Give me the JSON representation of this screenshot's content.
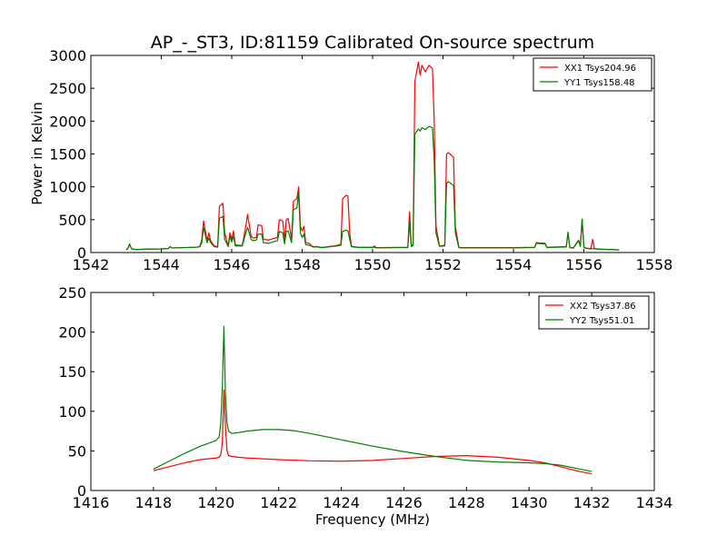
{
  "chart_data": [
    {
      "type": "line",
      "title": "AP_-_ST3, ID:81159 Calibrated On-source spectrum",
      "xlabel": "",
      "ylabel": "Power in Kelvin",
      "xlim": [
        1542,
        1558
      ],
      "ylim": [
        0,
        3000
      ],
      "xticks": [
        1542,
        1544,
        1546,
        1548,
        1550,
        1552,
        1554,
        1556,
        1558
      ],
      "yticks": [
        0,
        500,
        1000,
        1500,
        2000,
        2500,
        3000
      ],
      "grid": false,
      "legend_position": "top-right",
      "series": [
        {
          "name": "XX1 Tsys204.96",
          "color": "#ff0000",
          "x": [
            1543.0,
            1543.05,
            1543.1,
            1543.15,
            1543.2,
            1543.3,
            1543.5,
            1544.0,
            1544.2,
            1544.25,
            1544.3,
            1545.0,
            1545.05,
            1545.1,
            1545.15,
            1545.2,
            1545.3,
            1545.35,
            1545.4,
            1545.5,
            1545.6,
            1545.65,
            1545.75,
            1545.8,
            1545.9,
            1545.95,
            1546.0,
            1546.05,
            1546.1,
            1546.2,
            1546.3,
            1546.4,
            1546.45,
            1546.55,
            1546.6,
            1546.7,
            1546.75,
            1546.85,
            1546.9,
            1547.05,
            1547.1,
            1547.3,
            1547.35,
            1547.45,
            1547.5,
            1547.55,
            1547.6,
            1547.7,
            1547.75,
            1547.85,
            1547.9,
            1547.95,
            1548.0,
            1548.05,
            1548.1,
            1548.2,
            1548.25,
            1548.3,
            1548.45,
            1548.5,
            1548.6,
            1548.9,
            1549.0,
            1549.1,
            1549.15,
            1549.25,
            1549.3,
            1549.35,
            1549.4,
            1549.45,
            1549.6,
            1550.0,
            1550.05,
            1550.1,
            1551.0,
            1551.05,
            1551.1,
            1551.15,
            1551.2,
            1551.3,
            1551.35,
            1551.4,
            1551.5,
            1551.6,
            1551.7,
            1551.75,
            1551.8,
            1551.9,
            1552.05,
            1552.1,
            1552.15,
            1552.2,
            1552.3,
            1552.35,
            1552.45,
            1552.5,
            1553.0,
            1554.0,
            1554.6,
            1554.65,
            1554.9,
            1554.95,
            1555.5,
            1555.55,
            1555.6,
            1555.7,
            1555.85,
            1555.9,
            1555.95,
            1556.0,
            1556.05,
            1556.2,
            1556.25,
            1556.3,
            1556.5,
            1557.0
          ],
          "y": [
            40,
            60,
            130,
            60,
            50,
            45,
            50,
            55,
            60,
            90,
            70,
            80,
            85,
            100,
            200,
            480,
            180,
            300,
            180,
            100,
            90,
            700,
            750,
            300,
            100,
            300,
            200,
            330,
            120,
            110,
            110,
            400,
            580,
            250,
            220,
            230,
            420,
            410,
            200,
            190,
            200,
            230,
            500,
            480,
            180,
            500,
            520,
            200,
            780,
            820,
            1000,
            400,
            330,
            400,
            150,
            140,
            110,
            90,
            90,
            80,
            80,
            100,
            110,
            130,
            820,
            870,
            860,
            300,
            100,
            90,
            80,
            80,
            100,
            75,
            80,
            620,
            100,
            120,
            2600,
            2900,
            2700,
            2850,
            2750,
            2850,
            2800,
            2000,
            400,
            100,
            110,
            1500,
            1520,
            1500,
            1450,
            400,
            80,
            75,
            75,
            75,
            80,
            150,
            140,
            80,
            90,
            300,
            80,
            70,
            190,
            100,
            500,
            90,
            70,
            60,
            200,
            60,
            50,
            40
          ]
        },
        {
          "name": "YY1 Tsys158.48",
          "color": "#008000",
          "x": [
            1543.0,
            1543.05,
            1543.1,
            1543.15,
            1543.2,
            1543.3,
            1543.5,
            1544.0,
            1544.2,
            1544.25,
            1544.3,
            1545.0,
            1545.05,
            1545.1,
            1545.15,
            1545.2,
            1545.3,
            1545.35,
            1545.4,
            1545.5,
            1545.6,
            1545.65,
            1545.75,
            1545.8,
            1545.9,
            1545.95,
            1546.0,
            1546.05,
            1546.1,
            1546.2,
            1546.3,
            1546.4,
            1546.45,
            1546.55,
            1546.6,
            1546.7,
            1546.75,
            1546.85,
            1546.9,
            1547.05,
            1547.1,
            1547.3,
            1547.35,
            1547.45,
            1547.5,
            1547.55,
            1547.6,
            1547.7,
            1547.75,
            1547.85,
            1547.9,
            1547.95,
            1548.0,
            1548.05,
            1548.1,
            1548.2,
            1548.25,
            1548.3,
            1548.45,
            1548.5,
            1548.6,
            1548.9,
            1549.0,
            1549.1,
            1549.15,
            1549.25,
            1549.3,
            1549.35,
            1549.4,
            1549.45,
            1549.6,
            1550.0,
            1550.05,
            1550.1,
            1551.0,
            1551.05,
            1551.1,
            1551.15,
            1551.2,
            1551.3,
            1551.35,
            1551.4,
            1551.5,
            1551.6,
            1551.7,
            1551.75,
            1551.8,
            1551.9,
            1552.05,
            1552.1,
            1552.15,
            1552.2,
            1552.3,
            1552.35,
            1552.45,
            1552.5,
            1553.0,
            1554.0,
            1554.6,
            1554.65,
            1554.9,
            1554.95,
            1555.5,
            1555.55,
            1555.6,
            1555.7,
            1555.85,
            1555.9,
            1555.95,
            1556.0,
            1556.05,
            1556.2,
            1556.25,
            1556.3,
            1556.5,
            1557.0
          ],
          "y": [
            40,
            60,
            130,
            60,
            50,
            45,
            50,
            55,
            60,
            90,
            70,
            80,
            85,
            90,
            150,
            380,
            150,
            220,
            150,
            90,
            80,
            520,
            550,
            200,
            90,
            250,
            160,
            250,
            100,
            100,
            100,
            300,
            380,
            200,
            180,
            190,
            280,
            280,
            150,
            140,
            150,
            180,
            320,
            300,
            130,
            320,
            330,
            150,
            650,
            680,
            900,
            300,
            230,
            280,
            120,
            110,
            100,
            85,
            85,
            75,
            75,
            95,
            100,
            110,
            320,
            340,
            330,
            200,
            90,
            85,
            75,
            75,
            80,
            70,
            75,
            450,
            90,
            110,
            1800,
            1880,
            1850,
            1900,
            1870,
            1920,
            1900,
            1400,
            300,
            95,
            100,
            1050,
            1080,
            1060,
            1020,
            300,
            75,
            70,
            70,
            70,
            75,
            140,
            130,
            75,
            85,
            310,
            75,
            65,
            180,
            90,
            510,
            80,
            65,
            55,
            60,
            55,
            50,
            40
          ]
        }
      ]
    },
    {
      "type": "line",
      "title": "",
      "xlabel": "Frequency (MHz)",
      "ylabel": "",
      "xlim": [
        1416,
        1434
      ],
      "ylim": [
        0,
        250
      ],
      "xticks": [
        1416,
        1418,
        1420,
        1422,
        1424,
        1426,
        1428,
        1430,
        1432,
        1434
      ],
      "yticks": [
        0,
        50,
        100,
        150,
        200,
        250
      ],
      "grid": false,
      "legend_position": "top-right",
      "series": [
        {
          "name": "XX2 Tsys37.86",
          "color": "#ff0000",
          "x": [
            1418.0,
            1418.5,
            1419.0,
            1419.5,
            1420.0,
            1420.1,
            1420.15,
            1420.2,
            1420.25,
            1420.3,
            1420.35,
            1420.4,
            1420.5,
            1420.7,
            1421.0,
            1422.0,
            1423.0,
            1424.0,
            1425.0,
            1426.0,
            1427.0,
            1428.0,
            1429.0,
            1430.0,
            1430.5,
            1431.0,
            1431.5,
            1432.0
          ],
          "y": [
            25,
            30,
            35,
            39,
            41,
            42,
            45,
            60,
            127,
            80,
            50,
            44,
            43,
            42,
            41,
            39,
            37.5,
            37,
            38,
            40.5,
            43,
            44,
            42,
            38,
            35,
            30,
            25,
            21
          ]
        },
        {
          "name": "YY2 Tsys51.01",
          "color": "#008000",
          "x": [
            1418.0,
            1418.5,
            1419.0,
            1419.5,
            1420.0,
            1420.1,
            1420.15,
            1420.2,
            1420.25,
            1420.3,
            1420.35,
            1420.4,
            1420.5,
            1420.7,
            1421.0,
            1421.5,
            1422.0,
            1422.5,
            1423.0,
            1424.0,
            1425.0,
            1426.0,
            1427.0,
            1428.0,
            1429.0,
            1430.0,
            1430.5,
            1431.0,
            1431.5,
            1432.0
          ],
          "y": [
            27,
            37,
            47,
            56,
            63,
            68,
            85,
            130,
            207,
            120,
            85,
            75,
            72,
            73,
            75,
            77,
            77,
            75.5,
            72,
            64,
            56,
            49,
            43,
            38,
            36,
            35,
            34,
            32,
            28,
            24
          ]
        }
      ]
    }
  ]
}
